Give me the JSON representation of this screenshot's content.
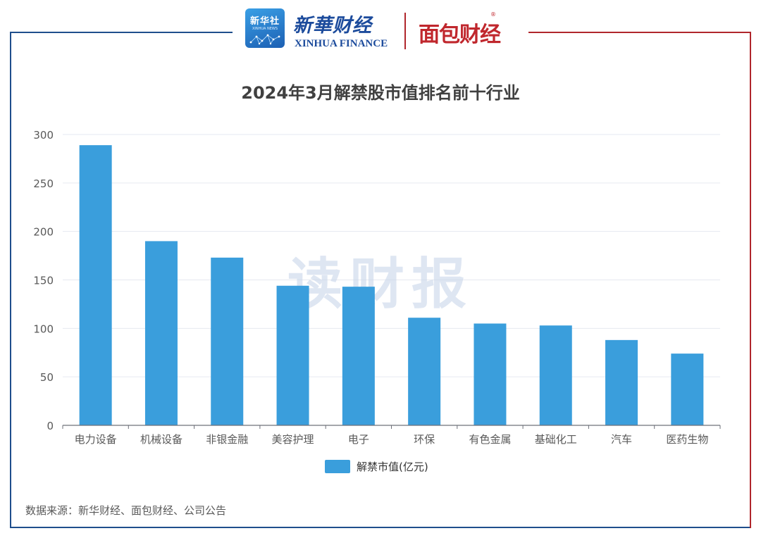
{
  "header": {
    "xinhua_logo_text": "新华社",
    "xinhua_logo_sub": "XINHUA NEWS",
    "brand_cn": "新華财经",
    "brand_en": "XINHUA FINANCE",
    "partner_logo": "面包财经",
    "partner_mark": "®"
  },
  "watermark": "读财报",
  "source_note": "数据来源：新华财经、面包财经、公司公告",
  "colors": {
    "bar": "#3a9edc",
    "frame_left": "#1f4e8c",
    "frame_right": "#b0262c",
    "grid": "#e6e9f0",
    "axis": "#6e7079",
    "watermark": "#c9d6ea"
  },
  "chart_data": {
    "type": "bar",
    "title": "2024年3月解禁股市值排名前十行业",
    "categories": [
      "电力设备",
      "机械设备",
      "非银金融",
      "美容护理",
      "电子",
      "环保",
      "有色金属",
      "基础化工",
      "汽车",
      "医药生物"
    ],
    "series": [
      {
        "name": "解禁市值(亿元)",
        "values": [
          289,
          190,
          173,
          144,
          143,
          111,
          105,
          103,
          88,
          74
        ]
      }
    ],
    "ylim": [
      0,
      300
    ],
    "yticks": [
      0,
      50,
      100,
      150,
      200,
      250,
      300
    ],
    "grid": true,
    "legend": "bottom-center"
  }
}
